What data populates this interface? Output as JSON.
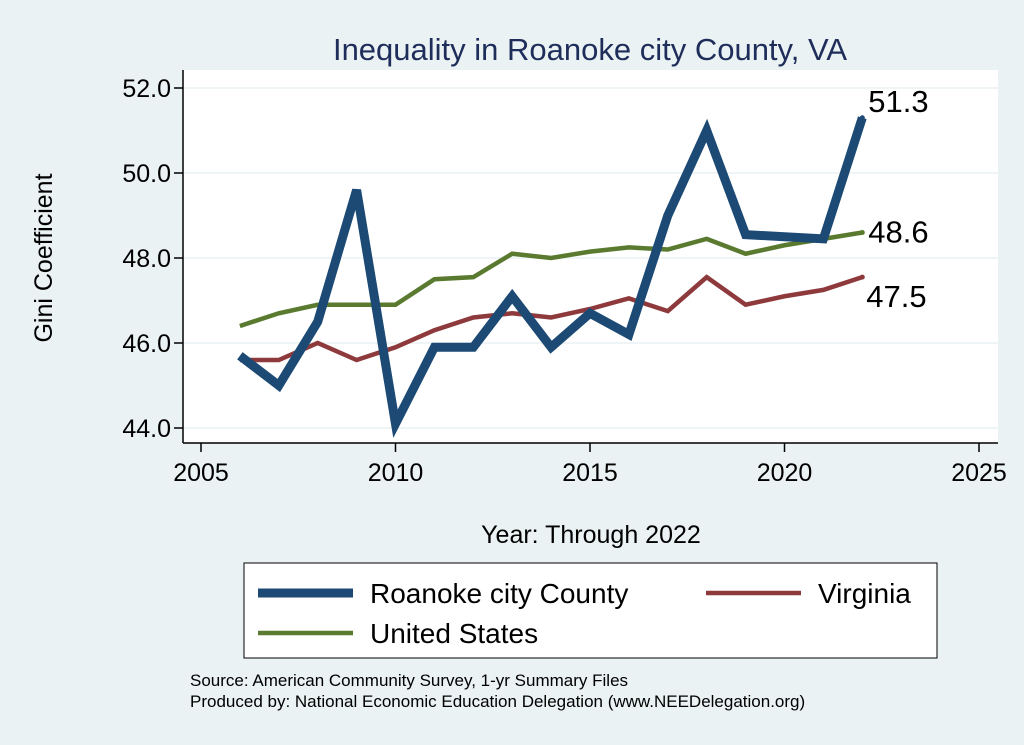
{
  "chart_data": {
    "type": "line",
    "title": "Inequality in Roanoke city County, VA",
    "xlabel": "Year: Through 2022",
    "ylabel": "Gini Coefficient",
    "xlim": [
      2005,
      2025
    ],
    "ylim": [
      44.0,
      52.0
    ],
    "xticks": [
      "2005",
      "2010",
      "2015",
      "2020",
      "2025"
    ],
    "yticks": [
      "44.0",
      "46.0",
      "48.0",
      "50.0",
      "52.0"
    ],
    "grid": true,
    "legend_position": "bottom",
    "x": [
      2006,
      2007,
      2008,
      2009,
      2010,
      2011,
      2012,
      2013,
      2014,
      2015,
      2016,
      2017,
      2018,
      2019,
      2020,
      2021,
      2022
    ],
    "series": [
      {
        "name": "Roanoke city County",
        "color": "#1c4a74",
        "values": [
          45.7,
          45.0,
          46.5,
          49.6,
          44.1,
          45.9,
          45.9,
          47.1,
          45.9,
          46.7,
          46.2,
          49.0,
          51.0,
          48.55,
          48.5,
          48.45,
          51.3
        ],
        "end_label": "51.3"
      },
      {
        "name": "Virginia",
        "color": "#8e3a3d",
        "values": [
          45.6,
          45.6,
          46.0,
          45.6,
          45.9,
          46.3,
          46.6,
          46.7,
          46.6,
          46.8,
          47.05,
          46.75,
          47.55,
          46.9,
          47.1,
          47.25,
          47.55
        ],
        "end_label": "47.5"
      },
      {
        "name": "United States",
        "color": "#5a7a2f",
        "values": [
          46.4,
          46.7,
          46.9,
          46.9,
          46.9,
          47.5,
          47.55,
          48.1,
          48.0,
          48.15,
          48.25,
          48.2,
          48.45,
          48.1,
          48.3,
          48.45,
          48.6
        ],
        "end_label": "48.6"
      }
    ],
    "source_lines": [
      "Source: American Community Survey, 1-yr Summary Files",
      "Produced by: National Economic Education Delegation (www.NEEDelegation.org)"
    ]
  }
}
